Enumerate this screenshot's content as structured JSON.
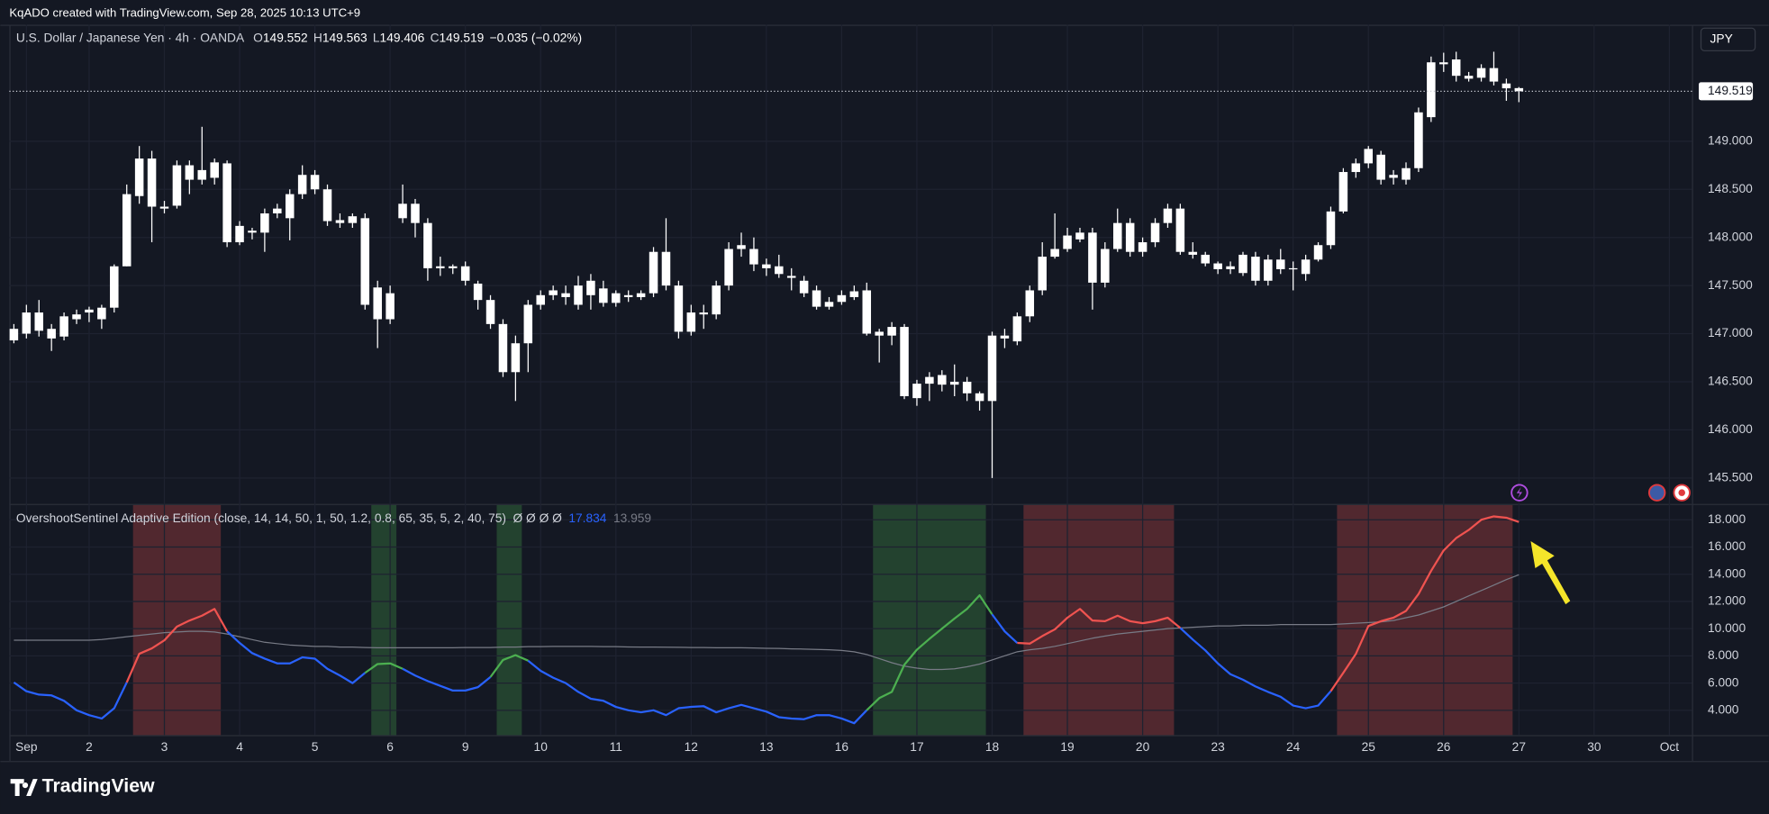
{
  "header": {
    "credit": "KqADO created with TradingView.com, Sep 28, 2025 10:13 UTC+9",
    "currency_button": "JPY"
  },
  "footer": {
    "brand": "TradingView"
  },
  "chart_data": [
    {
      "type": "candlestick",
      "symbol": "U.S. Dollar / Japanese Yen · 4h · OANDA",
      "ohlc_labels": [
        "O",
        "H",
        "L",
        "C"
      ],
      "change": "−0.035 (−0.02%)",
      "color": "#ffffff",
      "grid": true,
      "xlim": [
        -0.36,
        133.8
      ],
      "xticks": [
        {
          "value": 1,
          "label": "Sep"
        },
        {
          "value": 6,
          "label": "2"
        },
        {
          "value": 12,
          "label": "3"
        },
        {
          "value": 18,
          "label": "4"
        },
        {
          "value": 24,
          "label": "5"
        },
        {
          "value": 30,
          "label": "6"
        },
        {
          "value": 36,
          "label": "9"
        },
        {
          "value": 42,
          "label": "10"
        },
        {
          "value": 48,
          "label": "11"
        },
        {
          "value": 54,
          "label": "12"
        },
        {
          "value": 60,
          "label": "13"
        },
        {
          "value": 66,
          "label": "16"
        },
        {
          "value": 72,
          "label": "17"
        },
        {
          "value": 78,
          "label": "18"
        },
        {
          "value": 84,
          "label": "19"
        },
        {
          "value": 90,
          "label": "20"
        },
        {
          "value": 96,
          "label": "23"
        },
        {
          "value": 102,
          "label": "24"
        },
        {
          "value": 108,
          "label": "25"
        },
        {
          "value": 114,
          "label": "26"
        },
        {
          "value": 120,
          "label": "27"
        },
        {
          "value": 126,
          "label": "30"
        },
        {
          "value": 132,
          "label": "Oct"
        }
      ],
      "ylim": [
        145.23,
        150.21
      ],
      "yticks": [
        {
          "value": 145.5,
          "label": "145.500"
        },
        {
          "value": 146,
          "label": "146.000"
        },
        {
          "value": 146.5,
          "label": "146.500"
        },
        {
          "value": 147,
          "label": "147.000"
        },
        {
          "value": 147.5,
          "label": "147.500"
        },
        {
          "value": 148,
          "label": "148.000"
        },
        {
          "value": 148.5,
          "label": "148.500"
        },
        {
          "value": 149,
          "label": "149.000"
        }
      ],
      "open": [
        146.93,
        147.0,
        147.22,
        147.05,
        146.97,
        147.15,
        147.22,
        147.15,
        147.27,
        147.7,
        148.43,
        148.82,
        148.32,
        148.33,
        148.75,
        148.6,
        148.62,
        148.77,
        147.95,
        148.07,
        148.05,
        148.25,
        148.2,
        148.45,
        148.65,
        148.5,
        148.18,
        148.15,
        148.2,
        147.48,
        147.15,
        148.2,
        148.35,
        148.15,
        147.68,
        147.7,
        147.7,
        147.52,
        147.35,
        147.1,
        146.6,
        146.9,
        147.3,
        147.4,
        147.42,
        147.3,
        147.55,
        147.47,
        147.32,
        147.4,
        147.38,
        147.42,
        147.85,
        147.5,
        147.02,
        147.22,
        147.2,
        147.5,
        147.88,
        147.88,
        147.72,
        147.7,
        147.6,
        147.55,
        147.45,
        147.28,
        147.33,
        147.38,
        147.45,
        147.02,
        146.98,
        147.07,
        146.33,
        146.48,
        146.57,
        146.47,
        146.5,
        146.38,
        146.3,
        146.98,
        146.92,
        147.18,
        147.45,
        147.8,
        147.88,
        147.98,
        148.05,
        147.53,
        147.88,
        148.15,
        147.85,
        147.95,
        148.15,
        148.3,
        147.85,
        147.82,
        147.73,
        147.67,
        147.63,
        147.8,
        147.55,
        147.77,
        147.67,
        147.62,
        147.77,
        147.92,
        148.27,
        148.68,
        148.77,
        148.86,
        148.62,
        148.6,
        148.72,
        149.25,
        149.82,
        149.85,
        149.68,
        149.66,
        149.76,
        149.6,
        149.552
      ],
      "high": [
        147.1,
        147.3,
        147.35,
        147.1,
        147.22,
        147.25,
        147.28,
        147.3,
        147.72,
        148.55,
        148.95,
        148.9,
        148.38,
        148.8,
        148.8,
        149.15,
        148.82,
        148.8,
        148.17,
        148.1,
        148.3,
        148.35,
        148.5,
        148.75,
        148.7,
        148.55,
        148.25,
        148.25,
        148.25,
        147.55,
        147.5,
        148.55,
        148.4,
        148.2,
        147.8,
        147.72,
        147.75,
        147.55,
        147.4,
        147.15,
        146.98,
        147.35,
        147.45,
        147.5,
        147.5,
        147.6,
        147.62,
        147.55,
        147.45,
        147.45,
        147.45,
        147.9,
        148.2,
        147.55,
        147.3,
        147.3,
        147.55,
        147.95,
        148.05,
        148.0,
        147.78,
        147.82,
        147.68,
        147.6,
        147.5,
        147.38,
        147.45,
        147.5,
        147.53,
        147.05,
        147.12,
        147.1,
        146.52,
        146.6,
        146.62,
        146.68,
        146.55,
        146.4,
        147.02,
        147.05,
        147.22,
        147.5,
        147.95,
        148.25,
        148.1,
        148.1,
        148.1,
        147.95,
        148.3,
        148.2,
        148.0,
        148.2,
        148.35,
        148.35,
        147.95,
        147.85,
        147.75,
        147.75,
        147.85,
        147.85,
        147.82,
        147.88,
        147.75,
        147.82,
        147.95,
        148.32,
        148.72,
        148.82,
        148.95,
        148.9,
        148.7,
        148.78,
        149.35,
        149.88,
        149.92,
        149.93,
        149.72,
        149.8,
        149.93,
        149.65,
        149.563
      ],
      "low": [
        146.9,
        146.95,
        146.97,
        146.82,
        146.93,
        147.1,
        147.12,
        147.05,
        147.22,
        147.7,
        148.35,
        147.95,
        148.25,
        148.3,
        148.45,
        148.55,
        148.55,
        147.9,
        147.92,
        147.98,
        147.85,
        148.2,
        147.97,
        148.4,
        148.45,
        148.12,
        148.1,
        148.1,
        147.25,
        146.85,
        147.1,
        148.15,
        148.0,
        147.55,
        147.6,
        147.62,
        147.5,
        147.25,
        147.05,
        146.55,
        146.3,
        146.6,
        147.25,
        147.35,
        147.3,
        147.25,
        147.25,
        147.28,
        147.28,
        147.33,
        147.35,
        147.38,
        147.45,
        146.95,
        146.98,
        147.05,
        147.15,
        147.45,
        147.8,
        147.65,
        147.6,
        147.58,
        147.45,
        147.38,
        147.25,
        147.25,
        147.3,
        147.35,
        146.98,
        146.7,
        146.88,
        146.32,
        146.25,
        146.3,
        146.4,
        146.35,
        146.3,
        146.2,
        145.5,
        146.85,
        146.88,
        147.12,
        147.4,
        147.78,
        147.85,
        147.95,
        147.25,
        147.48,
        147.85,
        147.8,
        147.8,
        147.9,
        148.1,
        147.82,
        147.78,
        147.7,
        147.62,
        147.62,
        147.6,
        147.5,
        147.5,
        147.62,
        147.45,
        147.55,
        147.75,
        147.88,
        148.25,
        148.62,
        148.72,
        148.55,
        148.55,
        148.55,
        148.68,
        149.2,
        149.72,
        149.62,
        149.62,
        149.62,
        149.58,
        149.42,
        149.406
      ],
      "close": [
        147.05,
        147.22,
        147.03,
        146.95,
        147.18,
        147.2,
        147.25,
        147.27,
        147.7,
        148.45,
        148.82,
        148.32,
        148.3,
        148.75,
        148.6,
        148.7,
        148.78,
        147.95,
        148.12,
        148.05,
        148.25,
        148.3,
        148.45,
        148.65,
        148.5,
        148.17,
        148.15,
        148.22,
        147.3,
        147.15,
        147.42,
        148.35,
        148.15,
        147.68,
        147.7,
        147.68,
        147.55,
        147.35,
        147.1,
        146.6,
        146.9,
        147.3,
        147.4,
        147.45,
        147.38,
        147.5,
        147.4,
        147.32,
        147.42,
        147.38,
        147.42,
        147.85,
        147.5,
        147.02,
        147.22,
        147.2,
        147.5,
        147.88,
        147.92,
        147.72,
        147.68,
        147.62,
        147.58,
        147.42,
        147.28,
        147.33,
        147.4,
        147.44,
        147.0,
        146.98,
        147.07,
        146.35,
        146.48,
        146.55,
        146.47,
        146.5,
        146.38,
        146.3,
        146.98,
        146.95,
        147.18,
        147.45,
        147.8,
        147.88,
        148.02,
        148.05,
        147.53,
        147.88,
        148.15,
        147.85,
        147.95,
        148.15,
        148.3,
        147.85,
        147.82,
        147.73,
        147.67,
        147.7,
        147.82,
        147.55,
        147.77,
        147.67,
        147.68,
        147.77,
        147.92,
        148.27,
        148.68,
        148.77,
        148.92,
        148.6,
        148.65,
        148.72,
        149.3,
        149.82,
        149.8,
        149.68,
        149.65,
        149.76,
        149.62,
        149.55,
        149.519
      ]
    },
    {
      "type": "line",
      "title": "OvershootSentinel Adaptive Edition (close, 14, 14, 50, 1, 50, 1.2, 0.8, 65, 35, 5, 2, 40, 75)",
      "flags": "Ø Ø Ø Ø",
      "grid": true,
      "ylim": [
        2.18,
        19.08
      ],
      "yticks": [
        {
          "value": 4,
          "label": "4.000"
        },
        {
          "value": 6,
          "label": "6.000"
        },
        {
          "value": 8,
          "label": "8.000"
        },
        {
          "value": 10,
          "label": "10.000"
        },
        {
          "value": 12,
          "label": "12.000"
        },
        {
          "value": 14,
          "label": "14.000"
        },
        {
          "value": 16,
          "label": "16.000"
        },
        {
          "value": 18,
          "label": "18.000"
        }
      ],
      "zones": [
        {
          "from": 10,
          "to": 16,
          "color": "#ef5350"
        },
        {
          "from": 29,
          "to": 30,
          "color": "#4caf50"
        },
        {
          "from": 39,
          "to": 40,
          "color": "#4caf50"
        },
        {
          "from": 69,
          "to": 77,
          "color": "#4caf50"
        },
        {
          "from": 81,
          "to": 92,
          "color": "#ef5350"
        },
        {
          "from": 106,
          "to": 119,
          "color": "#ef5350"
        }
      ],
      "series": [
        {
          "color": "#2962ff",
          "values": [
            6.05,
            5.4,
            5.15,
            5.1,
            4.7,
            4.0,
            3.65,
            3.4,
            4.15,
            6.05,
            8.15,
            8.55,
            9.15,
            10.15,
            10.6,
            10.95,
            11.45,
            9.8,
            8.95,
            8.2,
            7.8,
            7.45,
            7.45,
            7.9,
            7.8,
            7.05,
            6.55,
            6.0,
            6.75,
            7.4,
            7.45,
            7.05,
            6.55,
            6.15,
            5.8,
            5.45,
            5.45,
            5.7,
            6.45,
            7.7,
            8.05,
            7.65,
            6.9,
            6.4,
            6.0,
            5.35,
            4.85,
            4.7,
            4.25,
            4.0,
            3.85,
            4.0,
            3.65,
            4.15,
            4.25,
            4.3,
            3.85,
            4.15,
            4.4,
            4.15,
            3.9,
            3.5,
            3.4,
            3.35,
            3.65,
            3.65,
            3.4,
            3.05,
            4.0,
            4.9,
            5.35,
            7.35,
            8.45,
            9.25,
            10.0,
            10.75,
            11.45,
            12.45,
            11.05,
            9.8,
            8.95,
            8.9,
            9.45,
            9.95,
            10.8,
            11.45,
            10.6,
            10.55,
            10.95,
            10.55,
            10.4,
            10.55,
            10.8,
            10.05,
            9.2,
            8.4,
            7.45,
            6.65,
            6.25,
            5.75,
            5.35,
            5.0,
            4.35,
            4.15,
            4.35,
            5.4,
            6.75,
            8.15,
            10.2,
            10.55,
            10.8,
            11.3,
            12.55,
            14.25,
            15.75,
            16.65,
            17.25,
            18.0,
            18.25,
            18.15,
            17.834
          ]
        },
        {
          "color": "#787b86",
          "values": [
            9.15,
            9.15,
            9.15,
            9.15,
            9.15,
            9.15,
            9.15,
            9.2,
            9.3,
            9.4,
            9.5,
            9.6,
            9.7,
            9.75,
            9.8,
            9.8,
            9.75,
            9.6,
            9.4,
            9.2,
            9.0,
            8.9,
            8.8,
            8.75,
            8.7,
            8.7,
            8.65,
            8.65,
            8.62,
            8.6,
            8.6,
            8.6,
            8.6,
            8.6,
            8.6,
            8.6,
            8.62,
            8.62,
            8.62,
            8.65,
            8.65,
            8.68,
            8.68,
            8.7,
            8.7,
            8.7,
            8.7,
            8.68,
            8.68,
            8.66,
            8.65,
            8.65,
            8.64,
            8.63,
            8.62,
            8.62,
            8.6,
            8.6,
            8.6,
            8.58,
            8.56,
            8.55,
            8.52,
            8.5,
            8.48,
            8.45,
            8.4,
            8.3,
            8.1,
            7.8,
            7.5,
            7.25,
            7.1,
            7.0,
            7.0,
            7.05,
            7.2,
            7.4,
            7.7,
            8.0,
            8.3,
            8.45,
            8.55,
            8.7,
            8.9,
            9.1,
            9.3,
            9.45,
            9.6,
            9.7,
            9.8,
            9.9,
            10.0,
            10.05,
            10.1,
            10.15,
            10.2,
            10.2,
            10.25,
            10.25,
            10.25,
            10.3,
            10.3,
            10.3,
            10.3,
            10.3,
            10.35,
            10.4,
            10.45,
            10.5,
            10.6,
            10.8,
            11.0,
            11.3,
            11.6,
            12.0,
            12.4,
            12.8,
            13.2,
            13.6,
            13.959
          ]
        }
      ]
    }
  ]
}
